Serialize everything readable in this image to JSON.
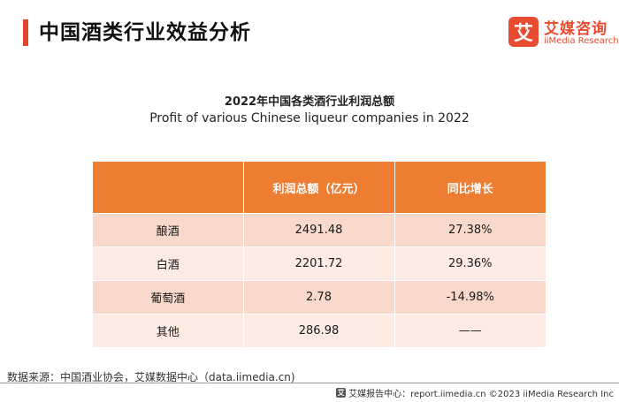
{
  "header": {
    "title": "中国酒类行业效益分析",
    "logo_mark": "艾",
    "logo_cn": "艾媒咨询",
    "logo_en": "iiMedia Research"
  },
  "chart": {
    "title_cn": "2022年中国各类酒行业利润总额",
    "title_en": "Profit  of various Chinese liqueur companies in 2022"
  },
  "table": {
    "columns": [
      "",
      "利润总额（亿元）",
      "同比增长"
    ],
    "rows": [
      {
        "category": "酿酒",
        "profit": "2491.48",
        "growth": "27.38%"
      },
      {
        "category": "白酒",
        "profit": "2201.72",
        "growth": "29.36%"
      },
      {
        "category": "葡萄酒",
        "profit": "2.78",
        "growth": "-14.98%"
      },
      {
        "category": "其他",
        "profit": "286.98",
        "growth": "——"
      }
    ]
  },
  "footer": {
    "source": "数据来源：中国酒业协会，艾媒数据中心（data.iimedia.cn)",
    "mini_logo": "艾",
    "right_text": "艾媒报告中心：report.iimedia.cn  ©2023  iiMedia Research  Inc"
  },
  "colors": {
    "accent": "#e2452c",
    "header_fill": "#ed7d31",
    "row_odd": "#f8d9cb",
    "row_even": "#fcebe3"
  }
}
